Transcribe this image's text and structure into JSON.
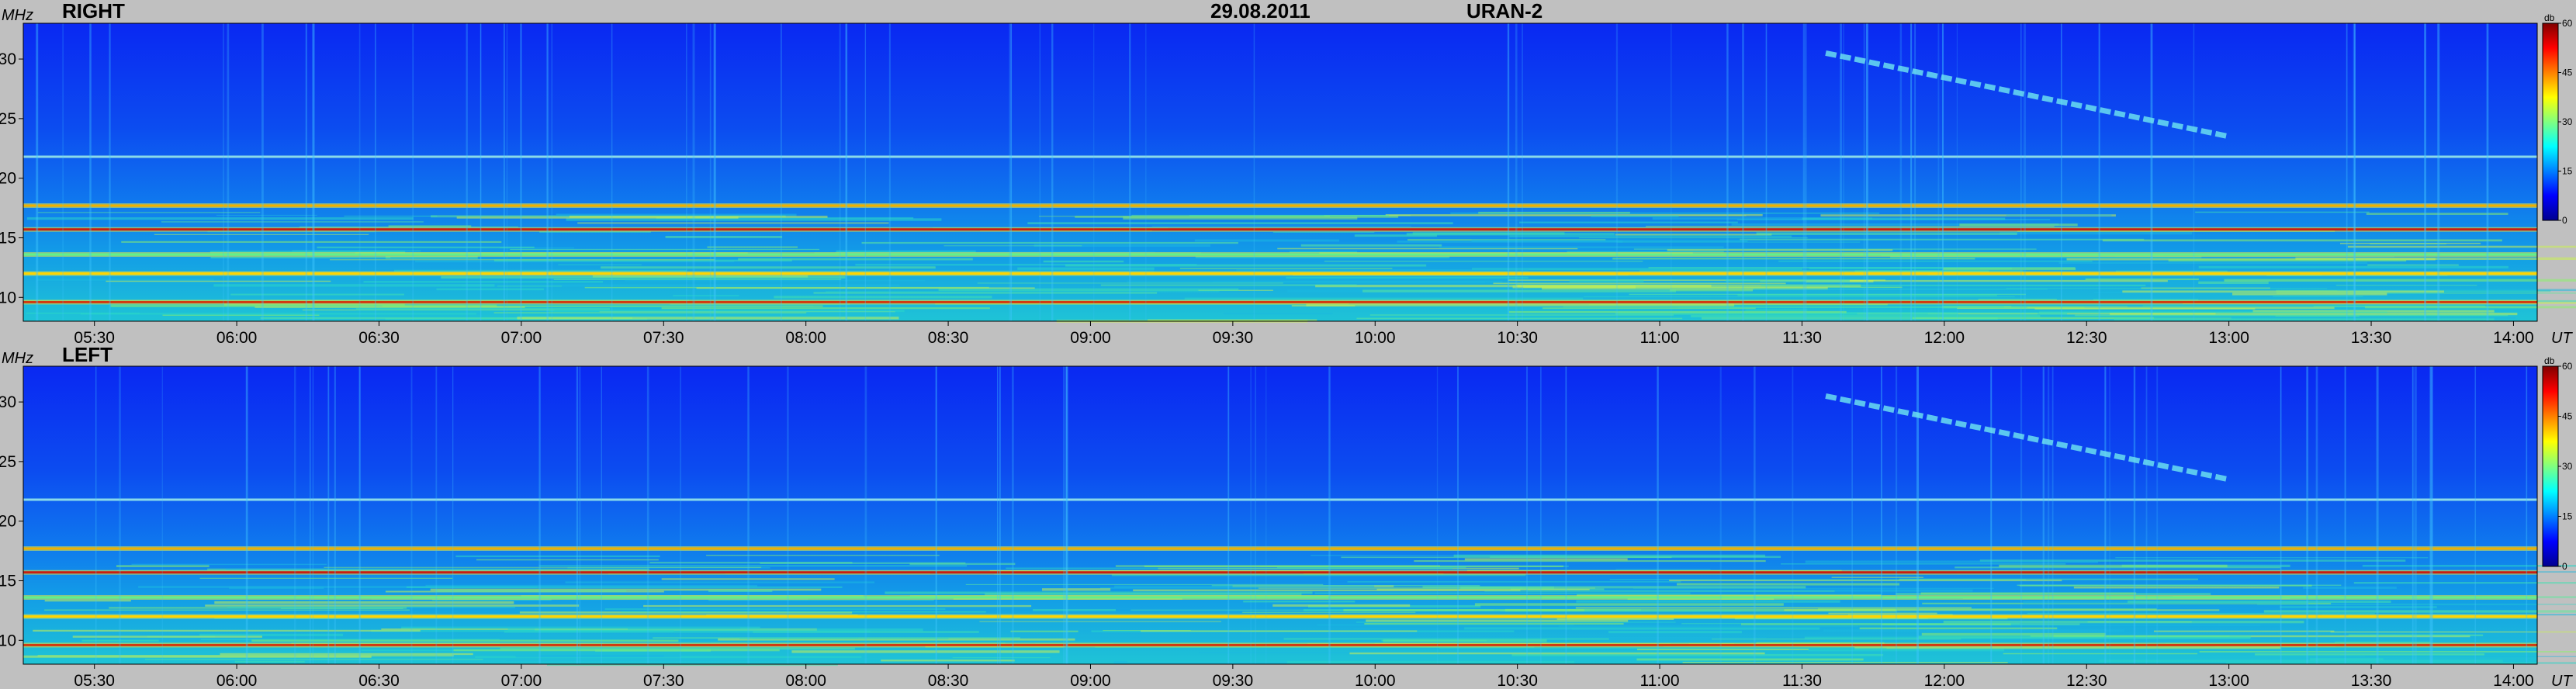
{
  "header": {
    "date": "29.08.2011",
    "instrument": "URAN-2"
  },
  "axes": {
    "y_unit": "MHz",
    "x_unit": "UT",
    "colorbar_unit": "db"
  },
  "colors": {
    "background": "#c0c0c0",
    "colormap": [
      "#00008f",
      "#0000ff",
      "#0080ff",
      "#00ffff",
      "#80ff80",
      "#ffff00",
      "#ff8000",
      "#ff0000",
      "#800000"
    ]
  },
  "chart_data": [
    {
      "type": "heatmap",
      "title": "RIGHT",
      "ylabel": "MHz",
      "xlabel": "UT",
      "yticks": [
        10,
        15,
        20,
        25,
        30
      ],
      "ylim": [
        8,
        33
      ],
      "xticks": [
        "05:30",
        "06:00",
        "06:30",
        "07:00",
        "07:30",
        "08:00",
        "08:30",
        "09:00",
        "09:30",
        "10:00",
        "10:30",
        "11:00",
        "11:30",
        "12:00",
        "12:30",
        "13:00",
        "13:30",
        "14:00"
      ],
      "xlim": [
        "05:15",
        "14:05"
      ],
      "colorbar": {
        "label": "db",
        "ticks": [
          0,
          15,
          30,
          45,
          60
        ],
        "range": [
          0,
          60
        ]
      },
      "bands_mhz": [
        9.6,
        12.0,
        13.6,
        15.7,
        17.7
      ],
      "tone_mhz": 21.8,
      "drift_burst": {
        "start": "11:35",
        "end": "13:00",
        "f_start": 30.5,
        "f_end": 23.5
      }
    },
    {
      "type": "heatmap",
      "title": "LEFT",
      "ylabel": "MHz",
      "xlabel": "UT",
      "yticks": [
        10,
        15,
        20,
        25,
        30
      ],
      "ylim": [
        8,
        33
      ],
      "xticks": [
        "05:30",
        "06:00",
        "06:30",
        "07:00",
        "07:30",
        "08:00",
        "08:30",
        "09:00",
        "09:30",
        "10:00",
        "10:30",
        "11:00",
        "11:30",
        "12:00",
        "12:30",
        "13:00",
        "13:30",
        "14:00"
      ],
      "xlim": [
        "05:15",
        "14:05"
      ],
      "colorbar": {
        "label": "db",
        "ticks": [
          0,
          15,
          30,
          45,
          60
        ],
        "range": [
          0,
          60
        ]
      },
      "bands_mhz": [
        9.6,
        12.0,
        13.6,
        15.7,
        17.7
      ],
      "tone_mhz": 21.8,
      "drift_burst": {
        "start": "11:35",
        "end": "13:00",
        "f_start": 30.5,
        "f_end": 23.5
      }
    }
  ]
}
